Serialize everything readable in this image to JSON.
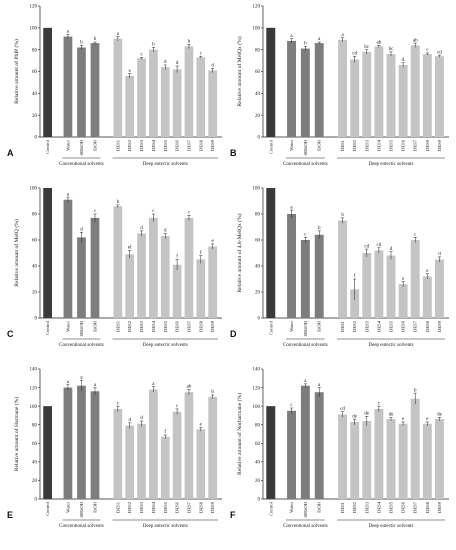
{
  "chart_data": [
    {
      "panel": "A",
      "type": "bar",
      "ylabel": "Relative amount of PhIP (%)",
      "ylim": [
        0,
        120
      ],
      "yticks": [
        0,
        20,
        40,
        60,
        80,
        100,
        120
      ],
      "categories": [
        "Control",
        "Water",
        "80EtOH",
        "EtOH",
        "DES1",
        "DES2",
        "DES3",
        "DES4",
        "DES5",
        "DES6",
        "DES7",
        "DES8",
        "DES9"
      ],
      "values": [
        100,
        92,
        82,
        86,
        90,
        56,
        72,
        80,
        64,
        62,
        83,
        73,
        61
      ],
      "errors": [
        0,
        2,
        2,
        1,
        2,
        2,
        1,
        2,
        2,
        3,
        2,
        1,
        2
      ],
      "letters": [
        "",
        "a",
        "b",
        "b",
        "a",
        "e",
        "c",
        "b",
        "d",
        "d",
        "b",
        "c",
        "d"
      ],
      "groups": [
        "Conventional solvents",
        "Deep eutectic solvents"
      ]
    },
    {
      "panel": "B",
      "type": "bar",
      "ylabel": "Relative amount of MeIQx (%)",
      "ylim": [
        0,
        120
      ],
      "yticks": [
        0,
        20,
        40,
        60,
        80,
        100,
        120
      ],
      "categories": [
        "Control",
        "Water",
        "80EtOH",
        "EtOH",
        "DES1",
        "DES2",
        "DES3",
        "DES4",
        "DES5",
        "DES6",
        "DES7",
        "DES8",
        "DES9"
      ],
      "values": [
        100,
        88,
        81,
        86,
        89,
        71,
        78,
        83,
        76,
        66,
        84,
        76,
        74
      ],
      "errors": [
        0,
        2,
        2,
        1,
        2,
        3,
        2,
        1,
        2,
        2,
        2,
        1,
        1
      ],
      "letters": [
        "",
        "a",
        "b",
        "a",
        "a",
        "cd",
        "bc",
        "ab",
        "bc",
        "d",
        "ab",
        "c",
        "cd"
      ],
      "groups": [
        "Conventional solvents",
        "Deep eutectic solvents"
      ]
    },
    {
      "panel": "C",
      "type": "bar",
      "ylabel": "Relative amount of MeIQ (%)",
      "ylim": [
        0,
        100
      ],
      "yticks": [
        0,
        20,
        40,
        60,
        80,
        100
      ],
      "categories": [
        "Control",
        "Water",
        "80EtOH",
        "EtOH",
        "DES1",
        "DES2",
        "DES3",
        "DES4",
        "DES5",
        "DES6",
        "DES7",
        "DES8",
        "DES9"
      ],
      "values": [
        100,
        91,
        62,
        77,
        86,
        49,
        65,
        77,
        63,
        41,
        77,
        45,
        55
      ],
      "errors": [
        0,
        2,
        4,
        3,
        1,
        3,
        2,
        3,
        2,
        4,
        2,
        3,
        2
      ],
      "letters": [
        "",
        "a",
        "d",
        "c",
        "b",
        "ef",
        "d",
        "c",
        "d",
        "f",
        "c",
        "f",
        "e"
      ],
      "groups": [
        "Conventional solvents",
        "Deep eutectic solvents"
      ]
    },
    {
      "panel": "D",
      "type": "bar",
      "ylabel": "Relative amount of 4,8-MeIQx (%)",
      "ylim": [
        0,
        100
      ],
      "yticks": [
        0,
        20,
        40,
        60,
        80,
        100
      ],
      "categories": [
        "Control",
        "Water",
        "80EtOH",
        "EtOH",
        "DES1",
        "DES2",
        "DES3",
        "DES4",
        "DES5",
        "DES6",
        "DES7",
        "DES8",
        "DES9"
      ],
      "values": [
        100,
        80,
        60,
        64,
        75,
        22,
        50,
        52,
        48,
        26,
        60,
        32,
        45
      ],
      "errors": [
        0,
        3,
        2,
        3,
        2,
        8,
        3,
        2,
        3,
        2,
        2,
        2,
        2
      ],
      "letters": [
        "",
        "a",
        "c",
        "b",
        "b",
        "f",
        "cd",
        "cd",
        "d",
        "e",
        "c",
        "e",
        "d"
      ],
      "groups": [
        "Conventional solvents",
        "Deep eutectic solvents"
      ]
    },
    {
      "panel": "E",
      "type": "bar",
      "ylabel": "Relative amount of Harmane (%)",
      "ylim": [
        0,
        140
      ],
      "yticks": [
        0,
        20,
        40,
        60,
        80,
        100,
        120,
        140
      ],
      "categories": [
        "Control",
        "Water",
        "80EtOH",
        "EtOH",
        "DES1",
        "DES2",
        "DES3",
        "DES4",
        "DES5",
        "DES6",
        "DES7",
        "DES8",
        "DES9"
      ],
      "values": [
        100,
        120,
        122,
        116,
        97,
        79,
        81,
        118,
        67,
        94,
        115,
        75,
        110
      ],
      "errors": [
        0,
        3,
        6,
        4,
        3,
        3,
        3,
        3,
        2,
        3,
        3,
        2,
        2
      ],
      "letters": [
        "",
        "a",
        "a",
        "a",
        "c",
        "d",
        "d",
        "a",
        "f",
        "c",
        "ab",
        "e",
        "b"
      ],
      "groups": [
        "Conventional solvents",
        "Deep eutectic solvents"
      ]
    },
    {
      "panel": "F",
      "type": "bar",
      "ylabel": "Relative amount of Norharmane (%)",
      "ylim": [
        0,
        140
      ],
      "yticks": [
        0,
        20,
        40,
        60,
        80,
        100,
        120,
        140
      ],
      "categories": [
        "Control",
        "Water",
        "80EtOH",
        "EtOH",
        "DES1",
        "DES2",
        "DES3",
        "DES4",
        "DES5",
        "DES6",
        "DES7",
        "DES8",
        "DES9"
      ],
      "values": [
        100,
        95,
        122,
        115,
        91,
        83,
        84,
        97,
        86,
        81,
        108,
        81,
        86
      ],
      "errors": [
        0,
        3,
        2,
        5,
        3,
        3,
        5,
        3,
        2,
        2,
        6,
        2,
        2
      ],
      "letters": [
        "",
        "c",
        "a",
        "a",
        "cd",
        "de",
        "de",
        "c",
        "de",
        "e",
        "b",
        "e",
        "de"
      ],
      "groups": [
        "Conventional solvents",
        "Deep eutectic solvents"
      ]
    }
  ],
  "colors": {
    "control": "#3a3a3a",
    "conventional": "#7d7d7d",
    "des": "#c4c4c4",
    "axis": "#222222"
  }
}
